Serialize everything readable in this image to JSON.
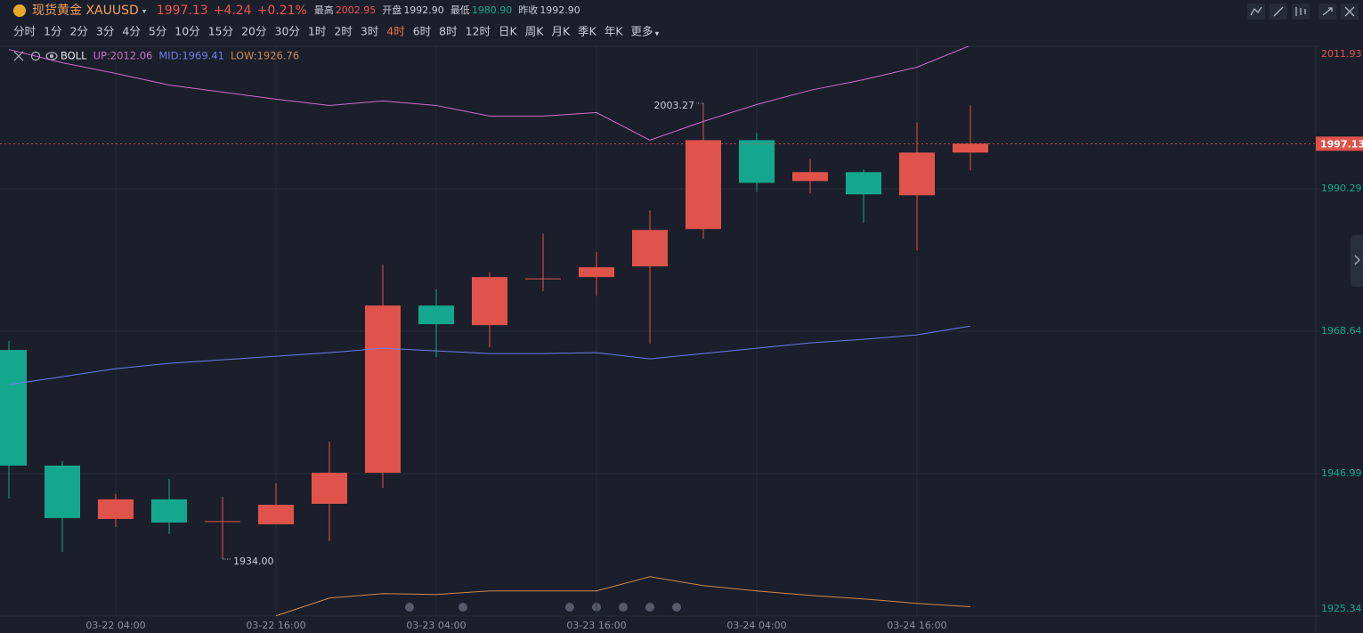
{
  "header": {
    "symbol": "现货黄金 XAUUSD",
    "price": "1997.13",
    "change": "+4.24",
    "change_pct": "+0.21%",
    "stats": [
      {
        "label": "最高",
        "value": "2002.95",
        "color": "#f0524e"
      },
      {
        "label": "开盘",
        "value": "1992.90",
        "color": "#c8ccd6"
      },
      {
        "label": "最低",
        "value": "1980.90",
        "color": "#13a88d"
      },
      {
        "label": "昨收",
        "value": "1992.90",
        "color": "#c8ccd6"
      }
    ]
  },
  "periods": [
    "分时",
    "1分",
    "2分",
    "3分",
    "4分",
    "5分",
    "10分",
    "15分",
    "20分",
    "30分",
    "1时",
    "2时",
    "3时",
    "4时",
    "6时",
    "8时",
    "12时",
    "日K",
    "周K",
    "月K",
    "季K",
    "年K",
    "更多"
  ],
  "active_period_index": 13,
  "chart_data": {
    "type": "candlestick",
    "indicator": "BOLL",
    "categories": [
      null,
      null,
      "03-22 04:00",
      null,
      null,
      "03-22 16:00",
      null,
      null,
      "03-23 04:00",
      null,
      null,
      "03-23 16:00",
      null,
      null,
      "03-24 04:00",
      null,
      null,
      "03-24 16:00",
      null
    ],
    "open": [
      1965.78,
      1948.21,
      1940.1,
      1943.08,
      1939.7,
      1939.29,
      1942.4,
      1947.13,
      1972.53,
      1969.56,
      1976.59,
      1976.86,
      1978.48,
      1984.16,
      1997.67,
      1991.45,
      1992.81,
      1989.29,
      1995.78
    ],
    "high": [
      1967.13,
      1948.89,
      1943.89,
      1946.18,
      1943.48,
      1945.51,
      1951.86,
      1978.75,
      1974.97,
      1977.54,
      1983.48,
      1980.64,
      1986.99,
      2003.27,
      1998.75,
      1994.83,
      1993.21,
      2000.37,
      2002.94
    ],
    "low": [
      1943.21,
      1935.1,
      1938.89,
      1937.81,
      1934.0,
      1939.29,
      1936.72,
      1944.83,
      1964.7,
      1966.18,
      1974.7,
      1974.02,
      1966.72,
      1982.67,
      1989.83,
      1989.56,
      1985.1,
      1980.91,
      1993.08
    ],
    "close": [
      1948.21,
      1940.24,
      1943.08,
      1939.56,
      1939.7,
      1942.26,
      1947.13,
      1972.53,
      1969.7,
      1976.86,
      1976.59,
      1978.35,
      1984.02,
      1997.67,
      1991.18,
      1992.81,
      1989.43,
      1995.78,
      1997.13
    ],
    "up_color": "#e0534b",
    "down_color": "#13a88d",
    "series": [
      {
        "name": "UP",
        "label": "UP:2012.06",
        "color": "#c96fc9",
        "values": [
          2011.45,
          2009.43,
          2007.81,
          2006.05,
          2004.97,
          2003.89,
          2002.94,
          2003.62,
          2002.94,
          2001.32,
          2001.32,
          2001.86,
          1997.67,
          2000.51,
          2003.08,
          2005.24,
          2006.86,
          2008.75,
          2012.06
        ]
      },
      {
        "name": "MID",
        "label": "MID:1969.41",
        "color": "#6b7ce8",
        "values": [
          1960.51,
          1961.72,
          1962.94,
          1963.75,
          1964.29,
          1964.83,
          1965.37,
          1966.05,
          1965.64,
          1965.24,
          1965.24,
          1965.37,
          1964.43,
          1965.24,
          1966.05,
          1966.86,
          1967.4,
          1968.08,
          1969.41
        ]
      },
      {
        "name": "LOW",
        "label": "LOW:1926.76",
        "color": "#c98a52",
        "values": [
          null,
          null,
          null,
          null,
          null,
          1925.37,
          1928.08,
          1928.75,
          1928.62,
          1929.16,
          1929.16,
          1929.16,
          1931.32,
          1929.97,
          1929.16,
          1928.48,
          1927.94,
          1927.27,
          1926.76
        ]
      }
    ],
    "annotations": [
      {
        "value": 2003.27,
        "label": "2003.27"
      },
      {
        "value": 1934.0,
        "label": "1934.00"
      }
    ],
    "last_price": 1997.13,
    "ylim": [
      1925.34,
      2011.93
    ],
    "yticks": [
      2011.93,
      1990.29,
      1968.64,
      1946.99,
      1925.34
    ],
    "ytick_colors": [
      "#e0534b",
      "#13a88d",
      "#13a88d",
      "#13a88d",
      "#13a88d"
    ],
    "grid": true
  }
}
